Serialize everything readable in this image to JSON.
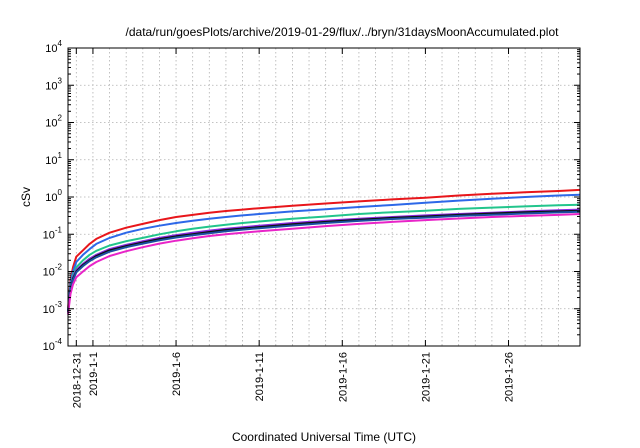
{
  "chart_data": {
    "type": "line",
    "title": "/data/run/goesPlots/archive/2019-01-29/flux/../bryn/31daysMoonAccumulated.plot",
    "xlabel": "Coordinated Universal Time (UTC)",
    "ylabel": "cSv",
    "yscale": "log",
    "ylim": [
      0.0001,
      10000
    ],
    "xlim": [
      -1.5,
      29.3
    ],
    "grid": true,
    "y_ticks": [
      {
        "base": "10",
        "exp": "-4",
        "value": 0.0001
      },
      {
        "base": "10",
        "exp": "-3",
        "value": 0.001
      },
      {
        "base": "10",
        "exp": "-2",
        "value": 0.01
      },
      {
        "base": "10",
        "exp": "-1",
        "value": 0.1
      },
      {
        "base": "10",
        "exp": "0",
        "value": 1
      },
      {
        "base": "10",
        "exp": "1",
        "value": 10
      },
      {
        "base": "10",
        "exp": "2",
        "value": 100
      },
      {
        "base": "10",
        "exp": "3",
        "value": 1000
      },
      {
        "base": "10",
        "exp": "4",
        "value": 10000
      }
    ],
    "x_ticks": [
      {
        "label": "2018-12-31",
        "day": -1
      },
      {
        "label": "2019-1-1",
        "day": 0
      },
      {
        "label": "2019-1-6",
        "day": 5
      },
      {
        "label": "2019-1-11",
        "day": 10
      },
      {
        "label": "2019-1-16",
        "day": 15
      },
      {
        "label": "2019-1-21",
        "day": 20
      },
      {
        "label": "2019-1-26",
        "day": 25
      }
    ],
    "x_minor_days": [
      1,
      2,
      3,
      4,
      6,
      7,
      8,
      9,
      11,
      12,
      13,
      14,
      16,
      17,
      18,
      19,
      21,
      22,
      23,
      24,
      26,
      27,
      28
    ],
    "series": [
      {
        "color": "#e8161b",
        "x": [
          -1.5,
          -1.35,
          -1.2,
          -1.0,
          -0.6,
          -0.2,
          0.2,
          1.0,
          2.0,
          3.0,
          4.0,
          5.0,
          6.0,
          7.0,
          8.0,
          9.0,
          10.0,
          12.0,
          14.0,
          16.0,
          18.0,
          20.0,
          22.0,
          24.0,
          26.0,
          28.0,
          29.3
        ],
        "y": [
          0.001,
          0.006,
          0.013,
          0.025,
          0.037,
          0.055,
          0.075,
          0.11,
          0.15,
          0.19,
          0.24,
          0.29,
          0.33,
          0.38,
          0.42,
          0.46,
          0.5,
          0.58,
          0.67,
          0.76,
          0.86,
          0.96,
          1.1,
          1.22,
          1.34,
          1.45,
          1.55
        ]
      },
      {
        "color": "#2d68e8",
        "x": [
          -1.5,
          -1.35,
          -1.2,
          -1.0,
          -0.6,
          -0.2,
          0.2,
          1.0,
          2.0,
          3.0,
          4.0,
          5.0,
          6.0,
          7.0,
          8.0,
          9.0,
          10.0,
          12.0,
          14.0,
          16.0,
          18.0,
          20.0,
          22.0,
          24.0,
          26.0,
          28.0,
          29.3
        ],
        "y": [
          0.0009,
          0.005,
          0.01,
          0.018,
          0.028,
          0.04,
          0.055,
          0.08,
          0.11,
          0.14,
          0.17,
          0.2,
          0.23,
          0.26,
          0.29,
          0.32,
          0.35,
          0.41,
          0.47,
          0.54,
          0.61,
          0.7,
          0.8,
          0.9,
          1.0,
          1.1,
          1.15
        ]
      },
      {
        "color": "#22c58c",
        "x": [
          -1.5,
          -1.35,
          -1.2,
          -1.0,
          -0.6,
          -0.2,
          0.2,
          1.0,
          2.0,
          3.0,
          4.0,
          5.0,
          6.0,
          7.0,
          8.0,
          9.0,
          10.0,
          12.0,
          14.0,
          16.0,
          18.0,
          20.0,
          22.0,
          24.0,
          26.0,
          28.0,
          29.3
        ],
        "y": [
          0.0008,
          0.004,
          0.008,
          0.013,
          0.02,
          0.028,
          0.036,
          0.05,
          0.065,
          0.08,
          0.1,
          0.12,
          0.14,
          0.16,
          0.18,
          0.2,
          0.22,
          0.26,
          0.3,
          0.35,
          0.39,
          0.43,
          0.48,
          0.52,
          0.56,
          0.6,
          0.62
        ]
      },
      {
        "color": "#8a2be2",
        "x": [
          -1.5,
          -1.35,
          -1.2,
          -1.0,
          -0.6,
          -0.2,
          0.2,
          1.0,
          2.0,
          3.0,
          4.0,
          5.0,
          6.0,
          7.0,
          8.0,
          9.0,
          10.0,
          12.0,
          14.0,
          16.0,
          18.0,
          20.0,
          22.0,
          24.0,
          26.0,
          28.0,
          29.3
        ],
        "y": [
          0.0008,
          0.0035,
          0.007,
          0.011,
          0.016,
          0.022,
          0.028,
          0.04,
          0.052,
          0.065,
          0.08,
          0.095,
          0.11,
          0.125,
          0.14,
          0.155,
          0.17,
          0.2,
          0.23,
          0.26,
          0.29,
          0.32,
          0.35,
          0.38,
          0.41,
          0.44,
          0.46
        ]
      },
      {
        "color": "#101010",
        "x": [
          -1.5,
          -1.35,
          -1.2,
          -1.0,
          -0.6,
          -0.2,
          0.2,
          1.0,
          2.0,
          3.0,
          4.0,
          5.0,
          6.0,
          7.0,
          8.0,
          9.0,
          10.0,
          12.0,
          14.0,
          16.0,
          18.0,
          20.0,
          22.0,
          24.0,
          26.0,
          28.0,
          29.3
        ],
        "y": [
          0.0008,
          0.0032,
          0.0065,
          0.01,
          0.015,
          0.02,
          0.026,
          0.037,
          0.048,
          0.06,
          0.074,
          0.088,
          0.1,
          0.115,
          0.13,
          0.143,
          0.156,
          0.185,
          0.215,
          0.245,
          0.275,
          0.3,
          0.33,
          0.36,
          0.39,
          0.41,
          0.43
        ]
      },
      {
        "color": "#1a4fa0",
        "x": [
          -1.5,
          -1.35,
          -1.2,
          -1.0,
          -0.6,
          -0.2,
          0.2,
          1.0,
          2.0,
          3.0,
          4.0,
          5.0,
          6.0,
          7.0,
          8.0,
          9.0,
          10.0,
          12.0,
          14.0,
          16.0,
          18.0,
          20.0,
          22.0,
          24.0,
          26.0,
          28.0,
          29.3
        ],
        "y": [
          0.0008,
          0.0031,
          0.006,
          0.0095,
          0.014,
          0.019,
          0.024,
          0.034,
          0.045,
          0.056,
          0.069,
          0.082,
          0.094,
          0.107,
          0.12,
          0.133,
          0.145,
          0.172,
          0.2,
          0.228,
          0.256,
          0.28,
          0.31,
          0.335,
          0.36,
          0.385,
          0.4
        ]
      },
      {
        "color": "#e824c8",
        "x": [
          -1.5,
          -1.35,
          -1.2,
          -1.0,
          -0.6,
          -0.2,
          0.2,
          1.0,
          2.0,
          3.0,
          4.0,
          5.0,
          6.0,
          7.0,
          8.0,
          9.0,
          10.0,
          12.0,
          14.0,
          16.0,
          18.0,
          20.0,
          22.0,
          24.0,
          26.0,
          28.0,
          29.3
        ],
        "y": [
          0.0007,
          0.0025,
          0.0045,
          0.007,
          0.01,
          0.014,
          0.018,
          0.026,
          0.035,
          0.045,
          0.056,
          0.067,
          0.078,
          0.09,
          0.1,
          0.11,
          0.12,
          0.14,
          0.165,
          0.19,
          0.215,
          0.24,
          0.265,
          0.29,
          0.31,
          0.33,
          0.35
        ]
      }
    ]
  }
}
